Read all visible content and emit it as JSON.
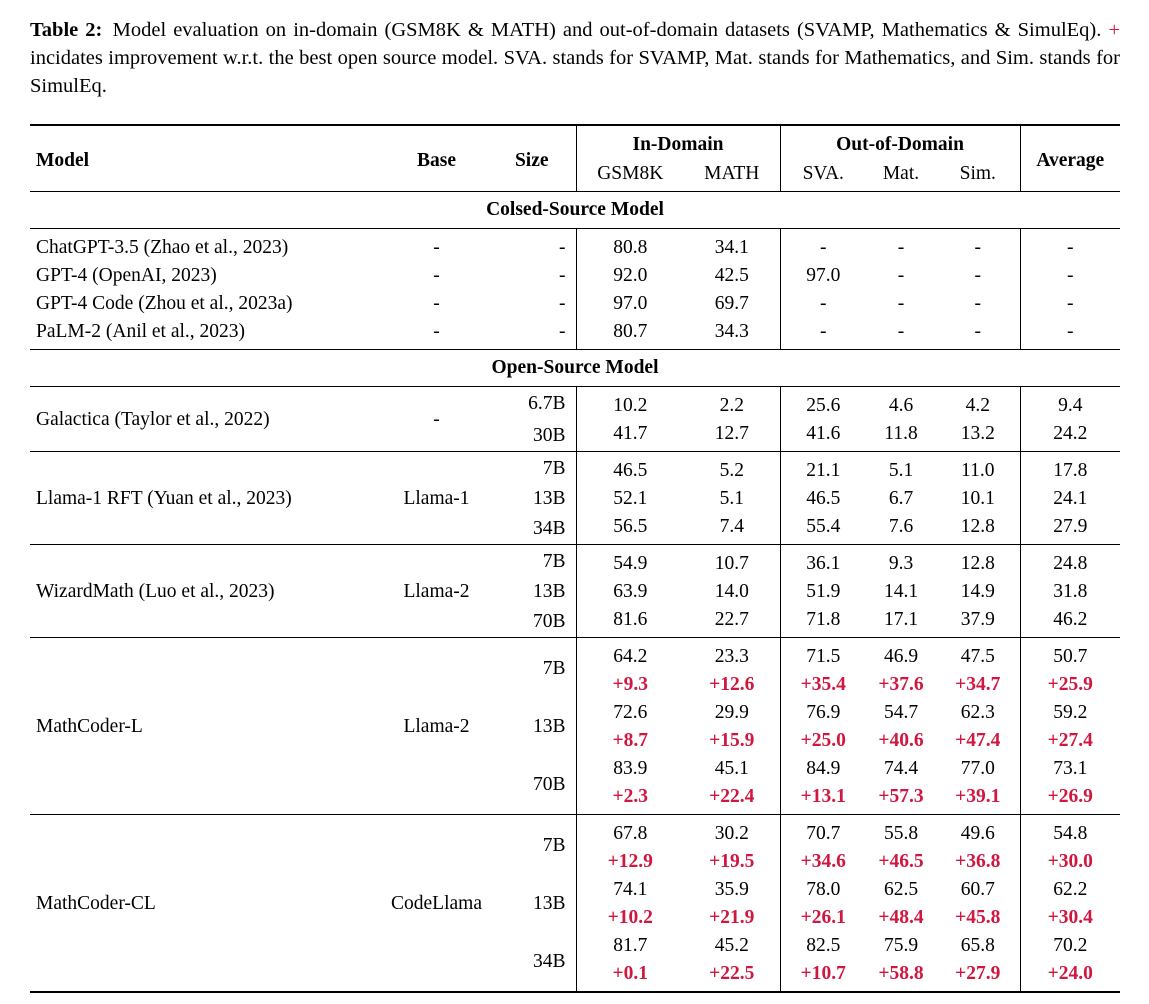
{
  "page": {
    "background": "#ffffff",
    "accent_red": "#d0173f"
  },
  "caption": {
    "label": "Table 2:",
    "before_plus": "Model evaluation on in-domain (GSM8K & MATH) and out-of-domain datasets (SVAMP, Mathematics & SimulEq).",
    "plus": "+",
    "after_plus": "incidates improvement w.r.t. the best open source model. SVA. stands for SVAMP, Mat. stands for Mathematics, and Sim. stands for SimulEq."
  },
  "table": {
    "header": {
      "model": "Model",
      "base": "Base",
      "size": "Size",
      "in_domain": "In-Domain",
      "out_of_domain": "Out-of-Domain",
      "average": "Average",
      "sub": [
        "GSM8K",
        "MATH",
        "SVA.",
        "Mat.",
        "Sim."
      ]
    },
    "sections": [
      {
        "label": "Colsed-Source Model",
        "rows": [
          {
            "model": "ChatGPT-3.5 (Zhao et al., 2023)",
            "base": "-",
            "size": "-",
            "values": [
              "80.8",
              "34.1",
              "-",
              "-",
              "-",
              "-"
            ]
          },
          {
            "model": "GPT-4 (OpenAI, 2023)",
            "base": "-",
            "size": "-",
            "values": [
              "92.0",
              "42.5",
              "97.0",
              "-",
              "-",
              "-"
            ]
          },
          {
            "model": "GPT-4 Code (Zhou et al., 2023a)",
            "base": "-",
            "size": "-",
            "values": [
              "97.0",
              "69.7",
              "-",
              "-",
              "-",
              "-"
            ]
          },
          {
            "model": "PaLM-2 (Anil et al., 2023)",
            "base": "-",
            "size": "-",
            "values": [
              "80.7",
              "34.3",
              "-",
              "-",
              "-",
              "-"
            ]
          }
        ]
      },
      {
        "label": "Open-Source Model",
        "groups": [
          {
            "model": "Galactica (Taylor et al., 2022)",
            "base": "-",
            "entries": [
              {
                "size": "6.7B",
                "values": [
                  "10.2",
                  "2.2",
                  "25.6",
                  "4.6",
                  "4.2",
                  "9.4"
                ]
              },
              {
                "size": "30B",
                "values": [
                  "41.7",
                  "12.7",
                  "41.6",
                  "11.8",
                  "13.2",
                  "24.2"
                ]
              }
            ]
          },
          {
            "model": "Llama-1 RFT (Yuan et al., 2023)",
            "base": "Llama-1",
            "entries": [
              {
                "size": "7B",
                "values": [
                  "46.5",
                  "5.2",
                  "21.1",
                  "5.1",
                  "11.0",
                  "17.8"
                ]
              },
              {
                "size": "13B",
                "values": [
                  "52.1",
                  "5.1",
                  "46.5",
                  "6.7",
                  "10.1",
                  "24.1"
                ]
              },
              {
                "size": "34B",
                "values": [
                  "56.5",
                  "7.4",
                  "55.4",
                  "7.6",
                  "12.8",
                  "27.9"
                ]
              }
            ]
          },
          {
            "model": "WizardMath (Luo et al., 2023)",
            "base": "Llama-2",
            "entries": [
              {
                "size": "7B",
                "values": [
                  "54.9",
                  "10.7",
                  "36.1",
                  "9.3",
                  "12.8",
                  "24.8"
                ]
              },
              {
                "size": "13B",
                "values": [
                  "63.9",
                  "14.0",
                  "51.9",
                  "14.1",
                  "14.9",
                  "31.8"
                ]
              },
              {
                "size": "70B",
                "values": [
                  "81.6",
                  "22.7",
                  "71.8",
                  "17.1",
                  "37.9",
                  "46.2"
                ]
              }
            ]
          },
          {
            "model": "MathCoder-L",
            "base": "Llama-2",
            "entries": [
              {
                "size": "7B",
                "values": [
                  "64.2",
                  "23.3",
                  "71.5",
                  "46.9",
                  "47.5",
                  "50.7"
                ],
                "deltas": [
                  "+9.3",
                  "+12.6",
                  "+35.4",
                  "+37.6",
                  "+34.7",
                  "+25.9"
                ]
              },
              {
                "size": "13B",
                "values": [
                  "72.6",
                  "29.9",
                  "76.9",
                  "54.7",
                  "62.3",
                  "59.2"
                ],
                "deltas": [
                  "+8.7",
                  "+15.9",
                  "+25.0",
                  "+40.6",
                  "+47.4",
                  "+27.4"
                ]
              },
              {
                "size": "70B",
                "values": [
                  "83.9",
                  "45.1",
                  "84.9",
                  "74.4",
                  "77.0",
                  "73.1"
                ],
                "deltas": [
                  "+2.3",
                  "+22.4",
                  "+13.1",
                  "+57.3",
                  "+39.1",
                  "+26.9"
                ]
              }
            ]
          },
          {
            "model": "MathCoder-CL",
            "base": "CodeLlama",
            "entries": [
              {
                "size": "7B",
                "values": [
                  "67.8",
                  "30.2",
                  "70.7",
                  "55.8",
                  "49.6",
                  "54.8"
                ],
                "deltas": [
                  "+12.9",
                  "+19.5",
                  "+34.6",
                  "+46.5",
                  "+36.8",
                  "+30.0"
                ]
              },
              {
                "size": "13B",
                "values": [
                  "74.1",
                  "35.9",
                  "78.0",
                  "62.5",
                  "60.7",
                  "62.2"
                ],
                "deltas": [
                  "+10.2",
                  "+21.9",
                  "+26.1",
                  "+48.4",
                  "+45.8",
                  "+30.4"
                ]
              },
              {
                "size": "34B",
                "values": [
                  "81.7",
                  "45.2",
                  "82.5",
                  "75.9",
                  "65.8",
                  "70.2"
                ],
                "deltas": [
                  "+0.1",
                  "+22.5",
                  "+10.7",
                  "+58.8",
                  "+27.9",
                  "+24.0"
                ]
              }
            ]
          }
        ]
      }
    ]
  }
}
